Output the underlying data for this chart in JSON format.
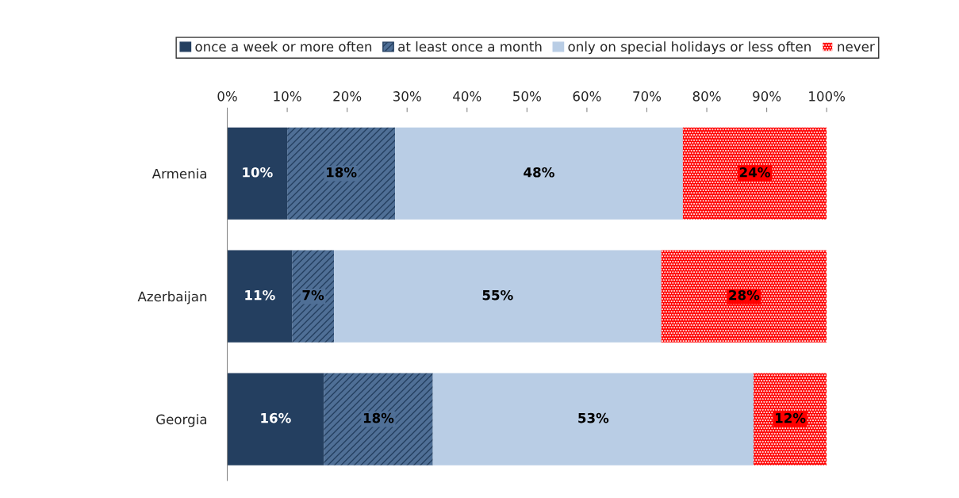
{
  "chart_data": {
    "type": "bar",
    "orientation": "horizontal",
    "stacked": true,
    "categories": [
      "Armenia",
      "Azerbaijan",
      "Georgia"
    ],
    "series": [
      {
        "name": "once a week or more often",
        "color": "#243f60",
        "values": [
          10,
          10.8,
          16.1
        ],
        "value_labels": [
          "10%",
          "11%",
          "16%"
        ]
      },
      {
        "name": "at least once a month",
        "color": "#4f6f96",
        "values": [
          18,
          7,
          18.2
        ],
        "value_labels": [
          "18%",
          "7%",
          "18%"
        ]
      },
      {
        "name": "only on special holidays or less often",
        "color": "#b9cde5",
        "values": [
          48,
          54.6,
          53.5
        ],
        "value_labels": [
          "48%",
          "55%",
          "53%"
        ]
      },
      {
        "name": "never",
        "color": "#ff0000",
        "values": [
          24,
          27.6,
          12.2
        ],
        "value_labels": [
          "24%",
          "28%",
          "12%"
        ]
      }
    ],
    "xlim": [
      0,
      100
    ],
    "xticks": [
      {
        "value": 0,
        "label": "0%"
      },
      {
        "value": 10,
        "label": "10%"
      },
      {
        "value": 20,
        "label": "20%"
      },
      {
        "value": 30,
        "label": "30%"
      },
      {
        "value": 40,
        "label": "40%"
      },
      {
        "value": 50,
        "label": "50%"
      },
      {
        "value": 60,
        "label": "60%"
      },
      {
        "value": 70,
        "label": "70%"
      },
      {
        "value": 80,
        "label": "80%"
      },
      {
        "value": 90,
        "label": "90%"
      },
      {
        "value": 100,
        "label": "100%"
      }
    ],
    "grid": false,
    "legend": "top"
  }
}
